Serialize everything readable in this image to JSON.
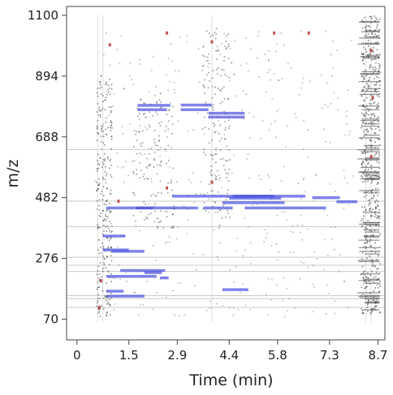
{
  "chart_data": {
    "type": "scatter",
    "title": "",
    "xlabel": "Time (min)",
    "ylabel": "m/z",
    "xlim": [
      -0.3,
      8.9
    ],
    "ylim": [
      0,
      1130
    ],
    "x_ticks": [
      {
        "value": 0,
        "label": "0"
      },
      {
        "value": 1.5,
        "label": "1.5"
      },
      {
        "value": 2.9,
        "label": "2.9"
      },
      {
        "value": 4.4,
        "label": "4.4"
      },
      {
        "value": 5.8,
        "label": "5.8"
      },
      {
        "value": 7.3,
        "label": "7.3"
      },
      {
        "value": 8.7,
        "label": "8.7"
      }
    ],
    "y_ticks": [
      {
        "value": 70,
        "label": "70"
      },
      {
        "value": 276,
        "label": "276"
      },
      {
        "value": 482,
        "label": "482"
      },
      {
        "value": 688,
        "label": "688"
      },
      {
        "value": 894,
        "label": "894"
      },
      {
        "value": 1100,
        "label": "1100"
      }
    ],
    "grid": false,
    "colors": {
      "features": "#4a4fe0",
      "signal": "#333333",
      "peaks": "#b03030",
      "background_lines": "#bdbdbd"
    },
    "feature_segments": [
      {
        "x": [
          1.75,
          2.7
        ],
        "y": 795
      },
      {
        "x": [
          1.75,
          2.6
        ],
        "y": 780
      },
      {
        "x": [
          3.0,
          3.9
        ],
        "y": 796
      },
      {
        "x": [
          3.0,
          3.8
        ],
        "y": 780
      },
      {
        "x": [
          3.8,
          4.85
        ],
        "y": 768
      },
      {
        "x": [
          3.8,
          4.85
        ],
        "y": 755
      },
      {
        "x": [
          2.75,
          5.7
        ],
        "y": 487
      },
      {
        "x": [
          4.5,
          6.6
        ],
        "y": 487
      },
      {
        "x": [
          4.4,
          5.9
        ],
        "y": 480
      },
      {
        "x": [
          6.8,
          7.6
        ],
        "y": 482
      },
      {
        "x": [
          7.5,
          8.1
        ],
        "y": 468
      },
      {
        "x": [
          4.2,
          6.0
        ],
        "y": 465
      },
      {
        "x": [
          0.85,
          2.2
        ],
        "y": 447
      },
      {
        "x": [
          1.7,
          3.5
        ],
        "y": 447
      },
      {
        "x": [
          3.65,
          4.5
        ],
        "y": 447
      },
      {
        "x": [
          4.85,
          7.2
        ],
        "y": 447
      },
      {
        "x": [
          0.75,
          1.4
        ],
        "y": 352
      },
      {
        "x": [
          0.75,
          1.5
        ],
        "y": 305
      },
      {
        "x": [
          1.0,
          1.95
        ],
        "y": 300
      },
      {
        "x": [
          1.25,
          2.55
        ],
        "y": 235
      },
      {
        "x": [
          1.95,
          2.45
        ],
        "y": 228
      },
      {
        "x": [
          0.85,
          2.3
        ],
        "y": 215
      },
      {
        "x": [
          2.4,
          2.65
        ],
        "y": 210
      },
      {
        "x": [
          0.85,
          1.35
        ],
        "y": 165
      },
      {
        "x": [
          0.85,
          1.95
        ],
        "y": 148
      },
      {
        "x": [
          4.2,
          4.95
        ],
        "y": 170
      }
    ],
    "horizontal_lines_mz": [
      110,
      140,
      150,
      232,
      253,
      280,
      384,
      470,
      645
    ]
  }
}
